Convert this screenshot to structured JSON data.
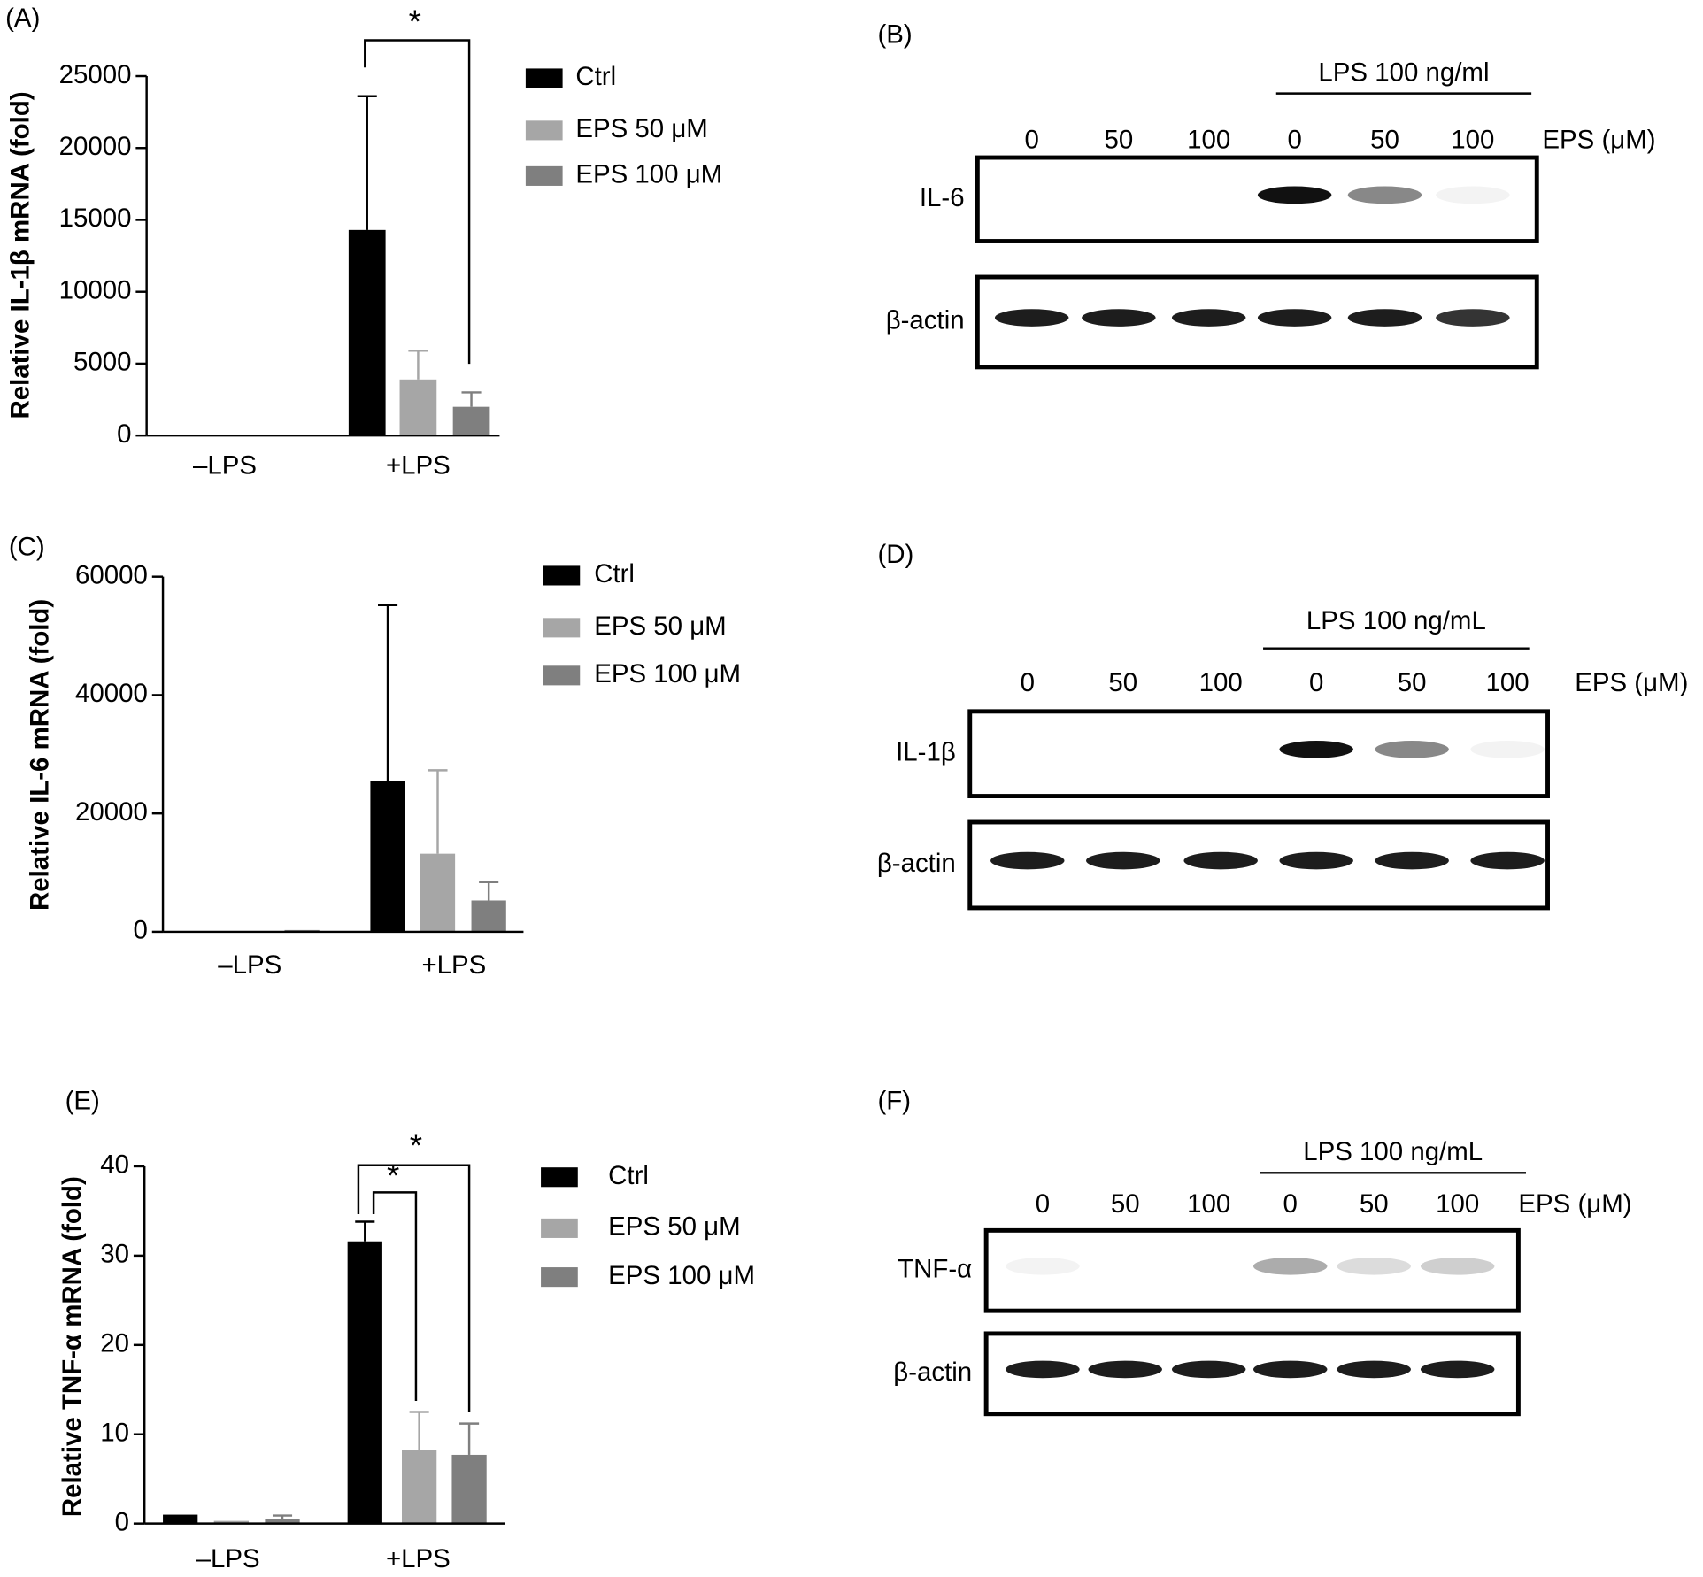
{
  "chart_data": [
    {
      "type": "bar",
      "panel": "(A)",
      "y_label": "Relative IL-1β mRNA (fold)",
      "categories": [
        "–LPS",
        "+LPS"
      ],
      "series": [
        {
          "name": "Ctrl",
          "color": "#000000",
          "values": [
            0,
            14300
          ],
          "errors": [
            null,
            9300
          ]
        },
        {
          "name": "EPS 50 μM",
          "color": "#a6a6a6",
          "values": [
            0,
            3900
          ],
          "errors": [
            null,
            2000
          ]
        },
        {
          "name": "EPS 100 μM",
          "color": "#7f7f7f",
          "values": [
            0,
            2000
          ],
          "errors": [
            null,
            1000
          ]
        }
      ],
      "ylim": [
        0,
        25000
      ],
      "yticks": [
        0,
        5000,
        10000,
        15000,
        20000,
        25000
      ],
      "annotations": [
        "*"
      ]
    },
    {
      "type": "bar",
      "panel": "(C)",
      "y_label": "Relative IL-6 mRNA (fold)",
      "categories": [
        "–LPS",
        "+LPS"
      ],
      "series": [
        {
          "name": "Ctrl",
          "color": "#000000",
          "values": [
            0,
            25500
          ],
          "errors": [
            null,
            29700
          ]
        },
        {
          "name": "EPS 50 μM",
          "color": "#a6a6a6",
          "values": [
            0,
            13200
          ],
          "errors": [
            null,
            14100
          ]
        },
        {
          "name": "EPS 100 μM",
          "color": "#7f7f7f",
          "values": [
            300,
            5300
          ],
          "errors": [
            null,
            3100
          ]
        }
      ],
      "ylim": [
        0,
        60000
      ],
      "yticks": [
        0,
        20000,
        40000,
        60000
      ],
      "annotations": []
    },
    {
      "type": "bar",
      "panel": "(E)",
      "y_label": "Relative TNF-α mRNA (fold)",
      "categories": [
        "–LPS",
        "+LPS"
      ],
      "series": [
        {
          "name": "Ctrl",
          "color": "#000000",
          "values": [
            1.0,
            31.6
          ],
          "errors": [
            null,
            2.2
          ]
        },
        {
          "name": "EPS 50 μM",
          "color": "#a6a6a6",
          "values": [
            0.3,
            8.2
          ],
          "errors": [
            null,
            4.3
          ]
        },
        {
          "name": "EPS 100 μM",
          "color": "#7f7f7f",
          "values": [
            0.5,
            7.7
          ],
          "errors": [
            0.4,
            3.5
          ]
        }
      ],
      "ylim": [
        0,
        40
      ],
      "yticks": [
        0,
        10,
        20,
        30,
        40
      ],
      "annotations": [
        "*",
        "*"
      ]
    }
  ],
  "blots": [
    {
      "panel": "(B)",
      "header": "LPS 100 ng/ml",
      "lanes": [
        "0",
        "50",
        "100",
        "0",
        "50",
        "100"
      ],
      "lane_unit": "EPS (μM)",
      "rows": [
        {
          "label": "IL-6",
          "bands": [
            0,
            0,
            0,
            1,
            0.5,
            0.05
          ]
        },
        {
          "label": "β-actin",
          "bands": [
            0.95,
            0.95,
            0.95,
            0.95,
            0.95,
            0.85
          ]
        }
      ]
    },
    {
      "panel": "(D)",
      "header": "LPS 100 ng/mL",
      "lanes": [
        "0",
        "50",
        "100",
        "0",
        "50",
        "100"
      ],
      "lane_unit": "EPS (μM)",
      "rows": [
        {
          "label": "IL-1β",
          "bands": [
            0,
            0,
            0,
            1,
            0.5,
            0.05
          ]
        },
        {
          "label": "β-actin",
          "bands": [
            0.95,
            0.95,
            0.95,
            0.95,
            0.95,
            0.95
          ]
        }
      ]
    },
    {
      "panel": "(F)",
      "header": "LPS 100 ng/mL",
      "lanes": [
        "0",
        "50",
        "100",
        "0",
        "50",
        "100"
      ],
      "lane_unit": "EPS (μM)",
      "rows": [
        {
          "label": "TNF-α",
          "bands": [
            0.05,
            0,
            0,
            0.35,
            0.15,
            0.2
          ]
        },
        {
          "label": "β-actin",
          "bands": [
            0.95,
            0.95,
            0.95,
            0.95,
            0.95,
            0.95
          ]
        }
      ]
    }
  ]
}
